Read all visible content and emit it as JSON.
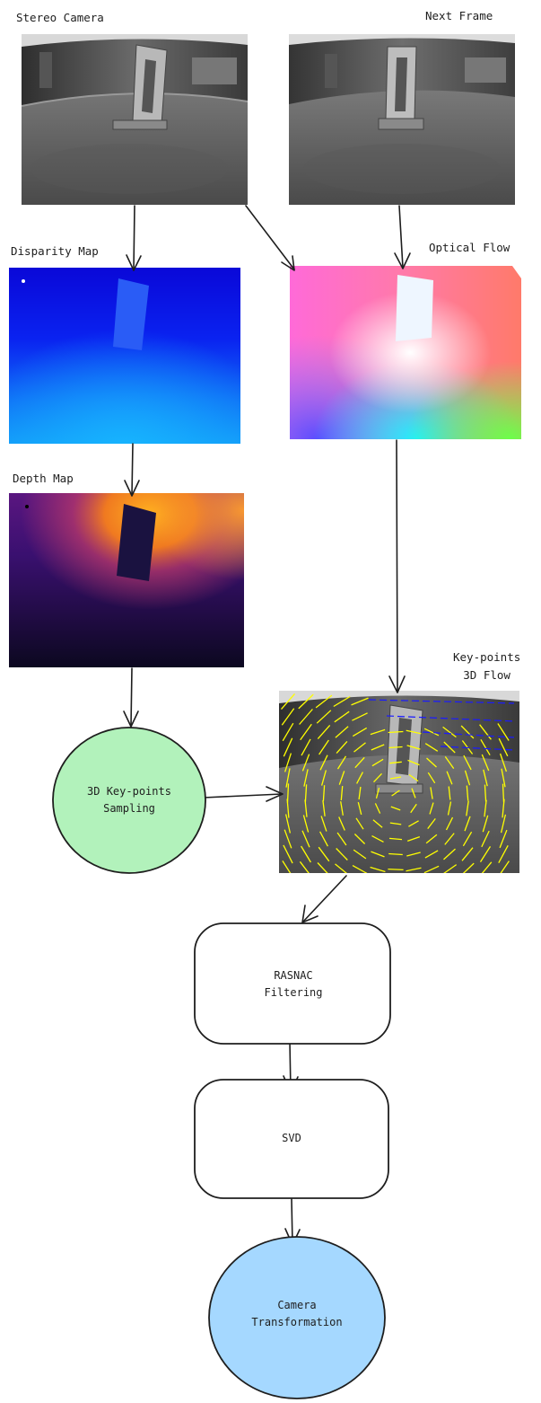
{
  "labels": {
    "stereo_camera": "Stereo Camera",
    "next_frame": "Next Frame",
    "disparity_map": "Disparity Map",
    "optical_flow": "Optical Flow",
    "depth_map": "Depth Map",
    "keypoints_flow_line1": "Key-points",
    "keypoints_flow_line2": "3D Flow"
  },
  "nodes": {
    "sampling": {
      "line1": "3D Key-points",
      "line2": "Sampling",
      "color": "#b2f2bb"
    },
    "rasnac": {
      "line1": "RASNAC",
      "line2": "Filtering"
    },
    "svd": {
      "line1": "SVD"
    },
    "camera": {
      "line1": "Camera",
      "line2": "Transformation",
      "color": "#a5d8ff"
    }
  },
  "colors": {
    "stroke": "#1e1e1e",
    "flow_yellow": "#ffff00",
    "flow_blue": "#1a1aff"
  }
}
